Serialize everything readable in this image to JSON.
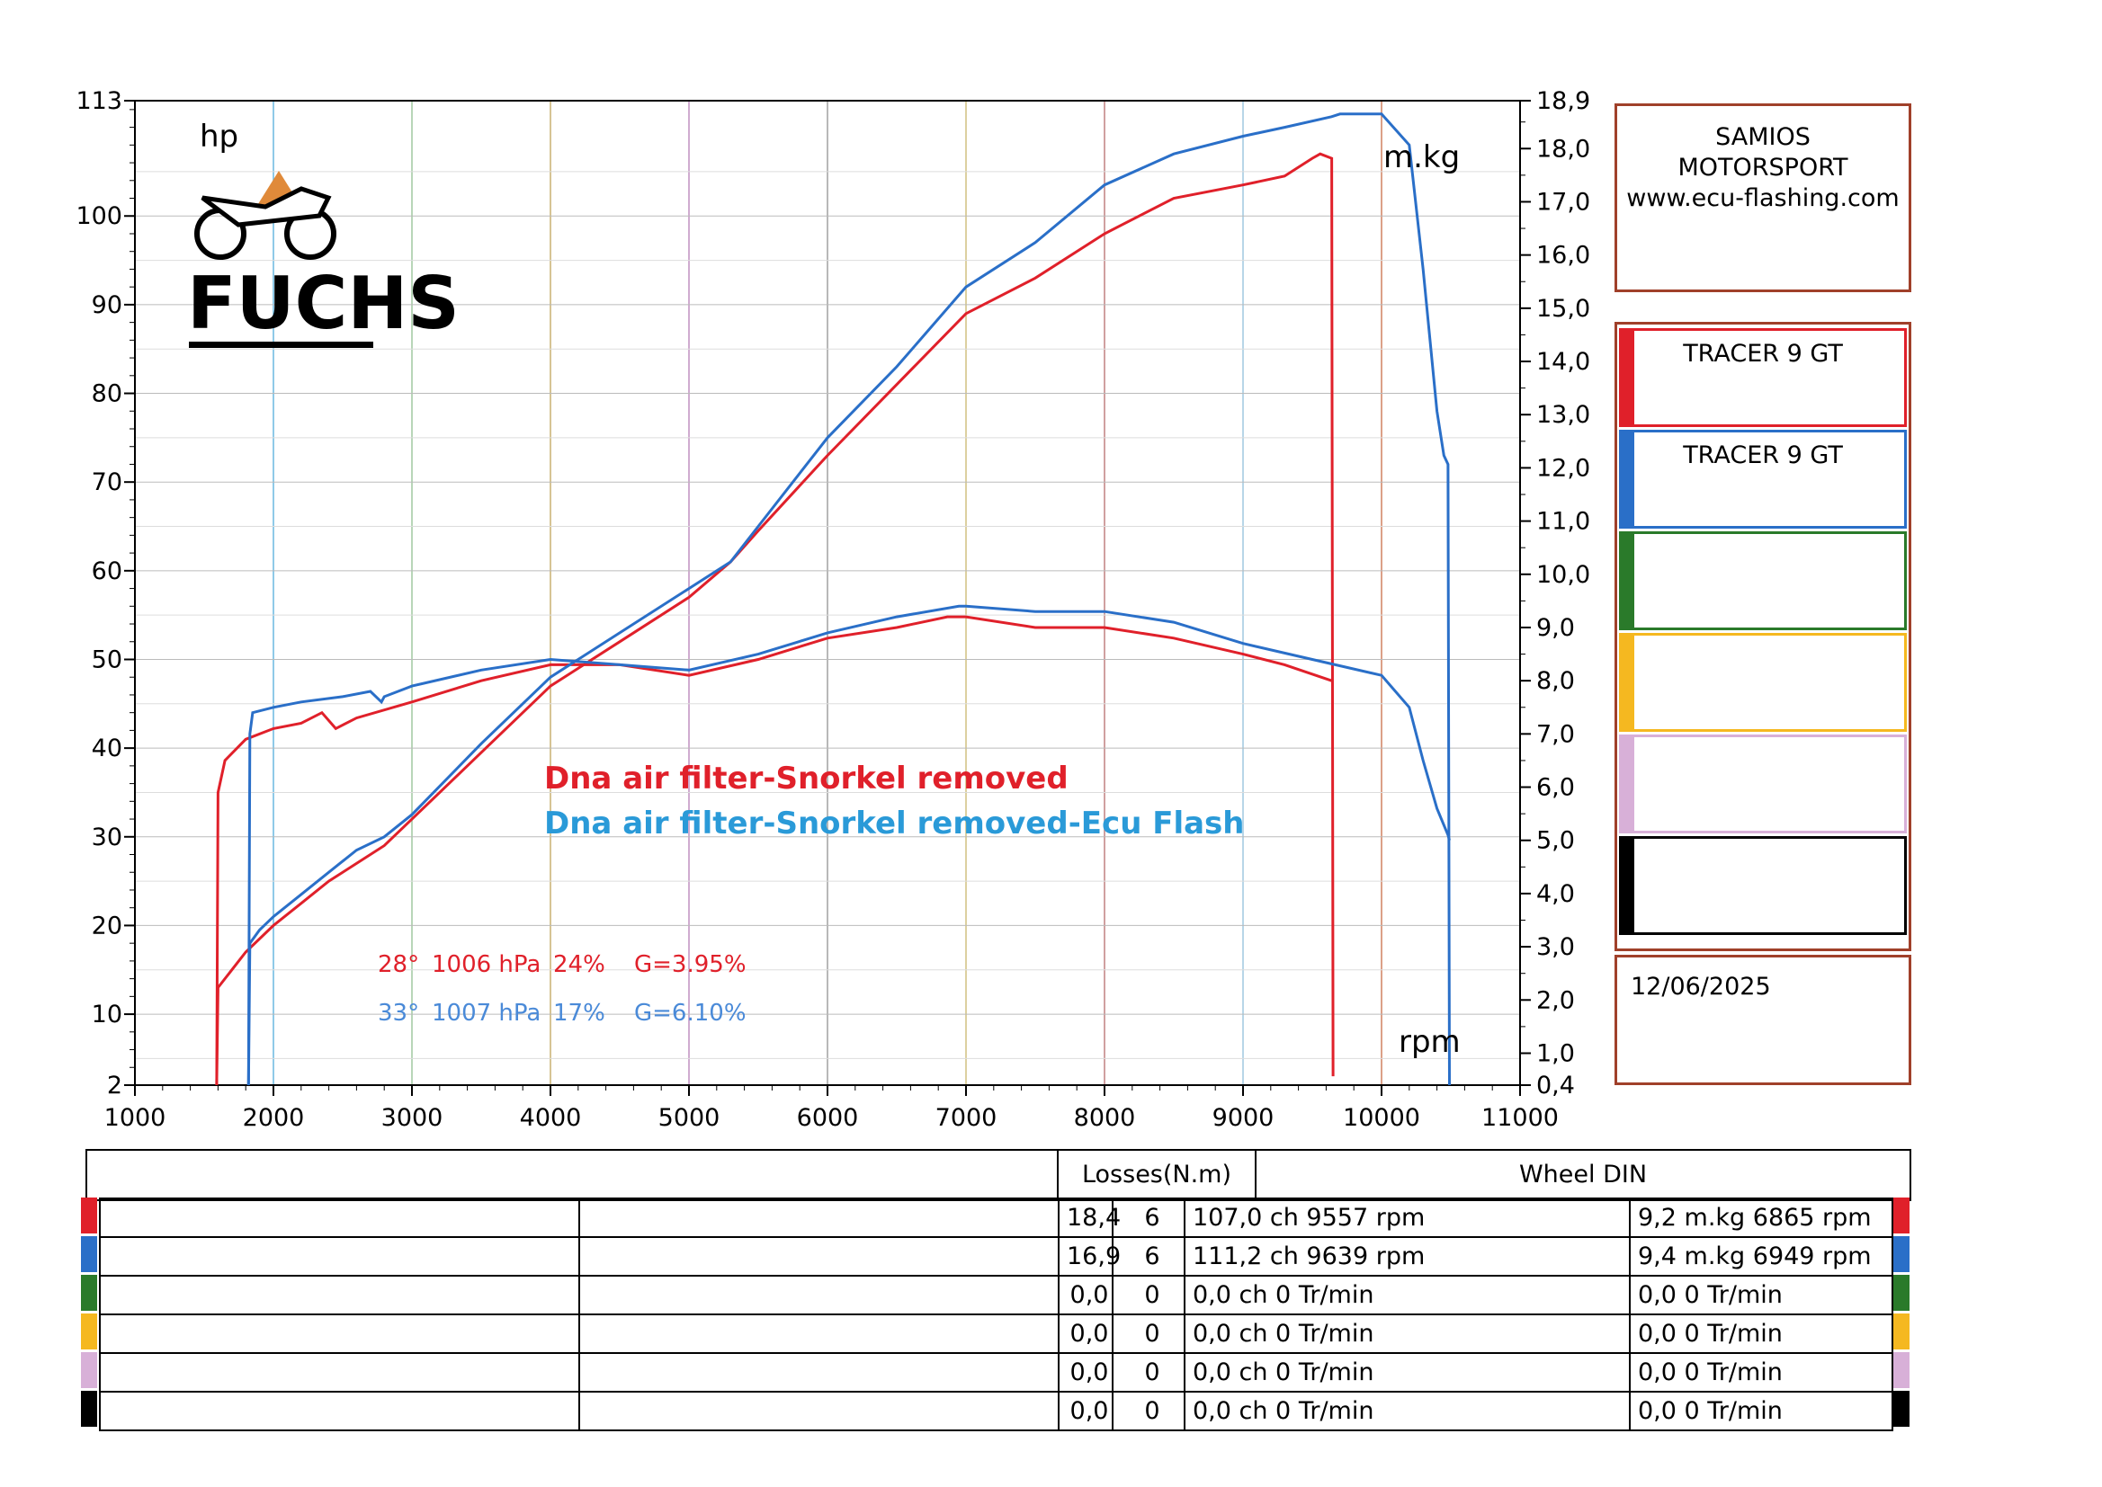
{
  "colors": {
    "red": "#e0202a",
    "blue": "#2a6fc8",
    "green": "#2a7a2a",
    "yellow": "#f5b820",
    "lilac": "#d8b0d8",
    "black": "#000000",
    "frame": "#a0402a"
  },
  "logo": {
    "text": "FUCHS"
  },
  "header_box": {
    "line1": "SAMIOS",
    "line2": "MOTORSPORT",
    "line3": "www.ecu-flashing.com"
  },
  "runs": [
    {
      "label": "TRACER 9 GT",
      "color": "#e0202a"
    },
    {
      "label": "TRACER 9 GT",
      "color": "#2a6fc8"
    },
    {
      "label": "",
      "color": "#2a7a2a"
    },
    {
      "label": "",
      "color": "#f5b820"
    },
    {
      "label": "",
      "color": "#d8b0d8"
    },
    {
      "label": "",
      "color": "#000000"
    }
  ],
  "date": "12/06/2025",
  "chart_data": {
    "type": "line",
    "xlabel": "rpm",
    "ylabel_left": "hp",
    "ylabel_right": "m.kg",
    "x_ticks": [
      "1000",
      "2000",
      "3000",
      "4000",
      "5000",
      "6000",
      "7000",
      "8000",
      "9000",
      "10000",
      "11000"
    ],
    "y_left_ticks": [
      {
        "v": 113,
        "label": "113"
      },
      {
        "v": 100,
        "label": "100"
      },
      {
        "v": 90,
        "label": "90"
      },
      {
        "v": 80,
        "label": "80"
      },
      {
        "v": 70,
        "label": "70"
      },
      {
        "v": 60,
        "label": "60"
      },
      {
        "v": 50,
        "label": "50"
      },
      {
        "v": 40,
        "label": "40"
      },
      {
        "v": 30,
        "label": "30"
      },
      {
        "v": 20,
        "label": "20"
      },
      {
        "v": 10,
        "label": "10"
      },
      {
        "v": 2,
        "label": "2"
      }
    ],
    "y_right_ticks": [
      {
        "v": 18.9,
        "label": "18,9"
      },
      {
        "v": 18,
        "label": "18,0"
      },
      {
        "v": 17,
        "label": "17,0"
      },
      {
        "v": 16,
        "label": "16,0"
      },
      {
        "v": 15,
        "label": "15,0"
      },
      {
        "v": 14,
        "label": "14,0"
      },
      {
        "v": 13,
        "label": "13,0"
      },
      {
        "v": 12,
        "label": "12,0"
      },
      {
        "v": 11,
        "label": "11,0"
      },
      {
        "v": 10,
        "label": "10,0"
      },
      {
        "v": 9,
        "label": "9,0"
      },
      {
        "v": 8,
        "label": "8,0"
      },
      {
        "v": 7,
        "label": "7,0"
      },
      {
        "v": 6,
        "label": "6,0"
      },
      {
        "v": 5,
        "label": "5,0"
      },
      {
        "v": 4,
        "label": "4,0"
      },
      {
        "v": 3,
        "label": "3,0"
      },
      {
        "v": 2,
        "label": "2,0"
      },
      {
        "v": 1,
        "label": "1,0"
      },
      {
        "v": 0.4,
        "label": "0,4"
      }
    ],
    "xlim": [
      1000,
      11000
    ],
    "ylim_left": [
      2,
      113
    ],
    "ylim_right": [
      0.4,
      18.9
    ],
    "grid": true,
    "legend_lines": [
      {
        "text": "Dna air filter-Snorkel removed",
        "color": "#e0202a"
      },
      {
        "text": "Dna air filter-Snorkel removed-Ecu Flash",
        "color": "#2a9ad8"
      }
    ],
    "conditions": [
      {
        "temp": "28°",
        "pressure": "1006 hPa",
        "humidity": "24%",
        "g": "G=3.95%",
        "color": "#e0202a"
      },
      {
        "temp": "33°",
        "pressure": "1007 hPa",
        "humidity": "17%",
        "g": "G=6.10%",
        "color": "#4a8ad8"
      }
    ],
    "series": [
      {
        "name": "TRACER 9 GT",
        "quantity": "power",
        "axis": "left",
        "color": "#e0202a",
        "x": [
          1590,
          1600,
          1800,
          2000,
          2200,
          2400,
          2600,
          2800,
          3000,
          3500,
          4000,
          4500,
          5000,
          5300,
          5500,
          6000,
          6500,
          7000,
          7500,
          8000,
          8500,
          9000,
          9300,
          9500,
          9557,
          9640,
          9650
        ],
        "y": [
          2,
          13,
          17,
          20,
          22.5,
          25,
          27,
          29,
          32,
          39.5,
          47,
          52,
          57,
          61,
          64.5,
          73,
          81,
          89,
          93,
          98,
          102,
          103.5,
          104.5,
          106.5,
          107,
          106.5,
          3
        ]
      },
      {
        "name": "TRACER 9 GT",
        "quantity": "torque",
        "axis": "right",
        "color": "#e0202a",
        "x": [
          1590,
          1600,
          1650,
          1800,
          2000,
          2200,
          2350,
          2450,
          2600,
          3000,
          3500,
          4000,
          4500,
          5000,
          5500,
          6000,
          6500,
          6865,
          7000,
          7500,
          8000,
          8500,
          9000,
          9300,
          9640
        ],
        "y": [
          0.4,
          5.9,
          6.5,
          6.9,
          7.1,
          7.2,
          7.4,
          7.1,
          7.3,
          7.6,
          8.0,
          8.3,
          8.3,
          8.1,
          8.4,
          8.8,
          9.0,
          9.2,
          9.2,
          9.0,
          9.0,
          8.8,
          8.5,
          8.3,
          8.0
        ]
      },
      {
        "name": "TRACER 9 GT",
        "quantity": "power",
        "axis": "left",
        "color": "#2a6fc8",
        "x": [
          1820,
          1830,
          1900,
          2000,
          2200,
          2400,
          2600,
          2800,
          3000,
          3500,
          4000,
          4500,
          5000,
          5300,
          5500,
          6000,
          6500,
          7000,
          7500,
          8000,
          8500,
          9000,
          9300,
          9639,
          9700,
          10000,
          10200,
          10300,
          10400,
          10450,
          10480,
          10490
        ],
        "y": [
          2,
          18,
          19.5,
          21,
          23.5,
          26,
          28.5,
          30,
          32.5,
          40.5,
          48,
          53,
          58,
          61,
          65,
          75,
          83,
          92,
          97,
          103.5,
          107,
          109,
          110,
          111.2,
          111.5,
          111.5,
          108,
          94,
          78,
          73,
          72,
          2
        ]
      },
      {
        "name": "TRACER 9 GT",
        "quantity": "torque",
        "axis": "right",
        "color": "#2a6fc8",
        "x": [
          1820,
          1830,
          1850,
          2000,
          2200,
          2500,
          2700,
          2780,
          2800,
          3000,
          3500,
          4000,
          4500,
          5000,
          5500,
          6000,
          6500,
          6949,
          7000,
          7500,
          8000,
          8500,
          9000,
          9500,
          10000,
          10200,
          10300,
          10400,
          10480,
          10490
        ],
        "y": [
          0.4,
          7.0,
          7.4,
          7.5,
          7.6,
          7.7,
          7.8,
          7.6,
          7.7,
          7.9,
          8.2,
          8.4,
          8.3,
          8.2,
          8.5,
          8.9,
          9.2,
          9.4,
          9.4,
          9.3,
          9.3,
          9.1,
          8.7,
          8.4,
          8.1,
          7.5,
          6.5,
          5.6,
          5.1,
          5.0
        ]
      }
    ]
  },
  "table": {
    "losses_header": "Losses(N.m)",
    "wheel_header": "Wheel DIN",
    "rows": [
      {
        "color": "#e0202a",
        "loss": "18,4",
        "gear": "6",
        "power": "107,0 ch 9557 rpm",
        "torque": "9,2 m.kg 6865 rpm"
      },
      {
        "color": "#2a6fc8",
        "loss": "16,9",
        "gear": "6",
        "power": "111,2 ch 9639 rpm",
        "torque": "9,4 m.kg 6949 rpm"
      },
      {
        "color": "#2a7a2a",
        "loss": "0,0",
        "gear": "0",
        "power": "0,0 ch 0 Tr/min",
        "torque": "0,0  0 Tr/min"
      },
      {
        "color": "#f5b820",
        "loss": "0,0",
        "gear": "0",
        "power": "0,0 ch 0 Tr/min",
        "torque": "0,0  0 Tr/min"
      },
      {
        "color": "#d8b0d8",
        "loss": "0,0",
        "gear": "0",
        "power": "0,0 ch 0 Tr/min",
        "torque": "0,0  0 Tr/min"
      },
      {
        "color": "#000000",
        "loss": "0,0",
        "gear": "0",
        "power": "0,0 ch 0 Tr/min",
        "torque": "0,0  0 Tr/min"
      }
    ]
  }
}
